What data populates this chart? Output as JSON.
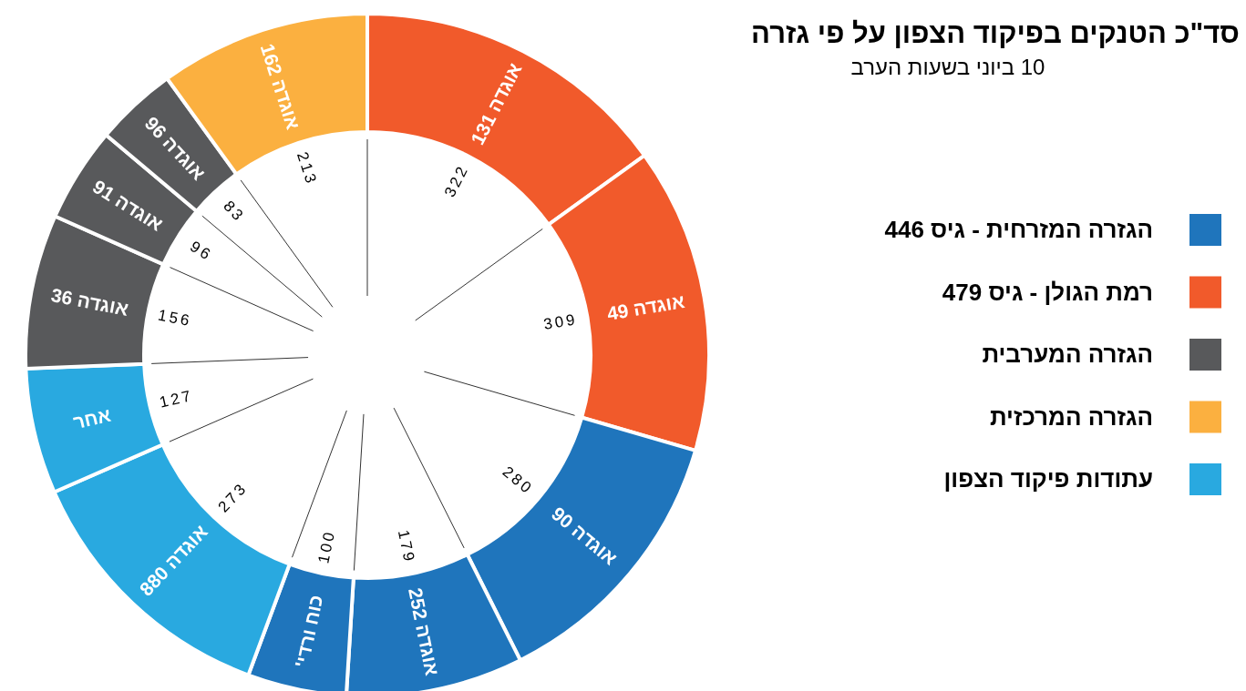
{
  "chart_data": {
    "type": "donut",
    "title": "סד\"כ הטנקים בפיקוד הצפון על פי גזרה",
    "subtitle": "10 ביוני בשעות הערב",
    "categories": [
      "אוגדה 131",
      "אוגדה 49",
      "אוגדה 90",
      "אוגדה 252",
      "כוח ורדי'",
      "אוגדה 880",
      "אחר",
      "אוגדה 36",
      "אוגדה 91",
      "אוגדה 96",
      "אוגדה 162"
    ],
    "values": [
      322,
      309,
      280,
      179,
      100,
      273,
      127,
      156,
      96,
      83,
      213
    ],
    "colors": [
      "#f15a2b",
      "#f15a2b",
      "#1f75bc",
      "#1f75bc",
      "#1f75bc",
      "#29a9e0",
      "#29a9e0",
      "#58595b",
      "#58595b",
      "#58595b",
      "#fbb040"
    ],
    "annotations": [
      {
        "text": "הגזרה המזרחית - גיס 446",
        "x": "אוגדה 90"
      },
      {
        "text": "רמת הגולן - גיס 479",
        "x": "אוגדה 131"
      },
      {
        "text": "הגזרה המערבית",
        "x": "אוגדה 36"
      },
      {
        "text": "הגזרה המרכזית",
        "x": "אוגדה 162"
      },
      {
        "text": "עתודות פיקוד הצפון",
        "x": "אוגדה 880"
      }
    ],
    "data_labels": true
  }
}
